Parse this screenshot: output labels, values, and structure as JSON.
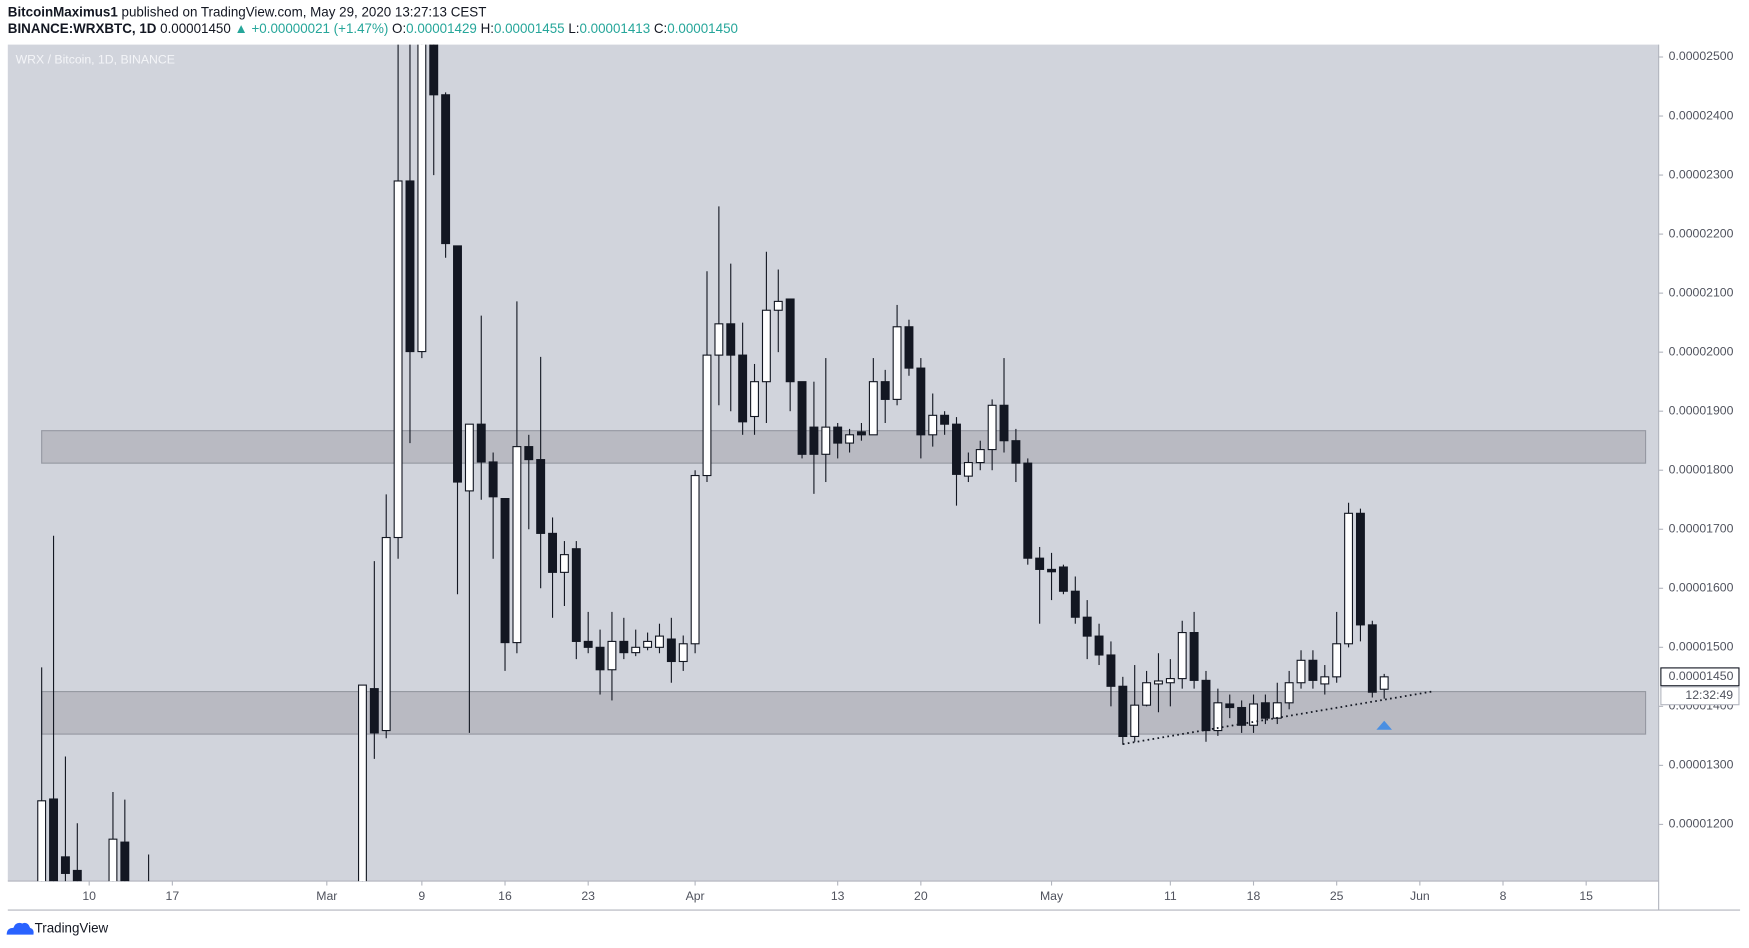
{
  "header": {
    "author": "BitcoinMaximus1",
    "published": "published on TradingView.com, May 29, 2020 13:27:13 CEST",
    "symbol": "BINANCE:WRXBTC, 1D",
    "last": "0.00001450",
    "change": "▲ +0.00000021 (+1.47%)",
    "o_label": "O:",
    "o": "0.00001429",
    "h_label": "H:",
    "h": "0.00001455",
    "l_label": "L:",
    "l": "0.00001413",
    "c_label": "C:",
    "c": "0.00001450"
  },
  "chart_data": {
    "type": "candlestick",
    "title": "WRX / Bitcoin, 1D, BINANCE",
    "x": [
      37,
      38,
      39,
      40,
      43,
      44,
      46,
      64,
      65,
      66,
      67,
      68,
      69,
      70,
      71,
      72,
      73,
      74,
      75,
      76,
      77,
      78,
      79,
      80,
      81,
      82,
      83,
      84,
      85,
      86,
      87,
      88,
      89,
      90,
      91,
      92,
      93,
      94,
      95,
      96,
      97,
      98,
      99,
      100,
      101,
      102,
      103,
      104,
      105,
      106,
      107,
      108,
      109,
      110,
      111,
      112,
      113,
      114,
      115,
      116,
      117,
      118,
      119,
      120,
      121,
      122,
      123,
      124,
      125,
      126,
      127,
      128,
      129,
      130,
      131,
      132,
      133,
      134,
      135,
      136,
      137,
      138,
      139,
      140,
      141,
      142,
      143,
      144,
      145,
      146,
      147,
      148,
      149,
      150
    ],
    "open": [
      1.09e-05,
      1.243e-05,
      1.145e-05,
      1.122e-05,
      1.1e-05,
      1.17e-05,
      1.1e-05,
      1.1e-05,
      1.43e-05,
      1.359e-05,
      1.686e-05,
      2.29e-05,
      2.001e-05,
      2.53e-05,
      2.436e-05,
      2.18e-05,
      1.765e-05,
      1.878e-05,
      1.814e-05,
      1.752e-05,
      1.508e-05,
      1.84e-05,
      1.818e-05,
      1.693e-05,
      1.627e-05,
      1.667e-05,
      1.51e-05,
      1.5e-05,
      1.462e-05,
      1.51e-05,
      1.491e-05,
      1.5e-05,
      1.5e-05,
      1.514e-05,
      1.476e-05,
      1.506e-05,
      1.791e-05,
      1.995e-05,
      2.048e-05,
      1.995e-05,
      1.891e-05,
      1.95e-05,
      2.071e-05,
      2.09e-05,
      1.95e-05,
      1.873e-05,
      1.827e-05,
      1.873e-05,
      1.846e-05,
      1.865e-05,
      1.86e-05,
      1.95e-05,
      1.92e-05,
      2.043e-05,
      1.973e-05,
      1.86e-05,
      1.893e-05,
      1.878e-05,
      1.79e-05,
      1.813e-05,
      1.835e-05,
      1.91e-05,
      1.85e-05,
      1.812e-05,
      1.651e-05,
      1.632e-05,
      1.636e-05,
      1.595e-05,
      1.551e-05,
      1.519e-05,
      1.487e-05,
      1.434e-05,
      1.349e-05,
      1.402e-05,
      1.438e-05,
      1.44e-05,
      1.447e-05,
      1.525e-05,
      1.444e-05,
      1.359e-05,
      1.404e-05,
      1.398e-05,
      1.368e-05,
      1.406e-05,
      1.38e-05,
      1.406e-05,
      1.44e-05,
      1.478e-05,
      1.438e-05,
      1.45e-05,
      1.506e-05,
      1.727e-05,
      1.538e-05,
      1.429e-05
    ],
    "high": [
      1.466e-05,
      1.689e-05,
      1.315e-05,
      1.202e-05,
      1.255e-05,
      1.242e-05,
      1.149e-05,
      1.436e-05,
      1.646e-05,
      1.759e-05,
      2.56e-05,
      2.56e-05,
      2.6e-05,
      2.6e-05,
      2.44e-05,
      2.18e-05,
      1.878e-05,
      2.062e-05,
      1.83e-05,
      1.752e-05,
      2.086e-05,
      1.86e-05,
      1.992e-05,
      1.72e-05,
      1.68e-05,
      1.68e-05,
      1.56e-05,
      1.53e-05,
      1.56e-05,
      1.55e-05,
      1.53e-05,
      1.525e-05,
      1.54e-05,
      1.55e-05,
      1.52e-05,
      1.8e-05,
      2.137e-05,
      2.247e-05,
      2.15e-05,
      2.05e-05,
      1.98e-05,
      2.17e-05,
      2.14e-05,
      2.09e-05,
      1.95e-05,
      1.95e-05,
      1.99e-05,
      1.88e-05,
      1.87e-05,
      1.88e-05,
      1.99e-05,
      1.97e-05,
      2.08e-05,
      2.055e-05,
      1.99e-05,
      1.93e-05,
      1.9e-05,
      1.89e-05,
      1.83e-05,
      1.85e-05,
      1.92e-05,
      1.99e-05,
      1.87e-05,
      1.82e-05,
      1.67e-05,
      1.66e-05,
      1.64e-05,
      1.62e-05,
      1.58e-05,
      1.54e-05,
      1.51e-05,
      1.45e-05,
      1.47e-05,
      1.46e-05,
      1.49e-05,
      1.48e-05,
      1.545e-05,
      1.56e-05,
      1.46e-05,
      1.43e-05,
      1.42e-05,
      1.41e-05,
      1.42e-05,
      1.42e-05,
      1.44e-05,
      1.46e-05,
      1.495e-05,
      1.495e-05,
      1.47e-05,
      1.56e-05,
      1.745e-05,
      1.735e-05,
      1.545e-05,
      1.455e-05
    ],
    "low": [
      1.08e-05,
      1.08e-05,
      1.08e-05,
      1.08e-05,
      1.08e-05,
      1.08e-05,
      1.08e-05,
      1.05e-05,
      1.311e-05,
      1.346e-05,
      1.65e-05,
      1.846e-05,
      1.99e-05,
      2.3e-05,
      2.16e-05,
      1.59e-05,
      1.355e-05,
      1.75e-05,
      1.65e-05,
      1.46e-05,
      1.49e-05,
      1.7e-05,
      1.6e-05,
      1.55e-05,
      1.57e-05,
      1.48e-05,
      1.49e-05,
      1.42e-05,
      1.41e-05,
      1.48e-05,
      1.485e-05,
      1.495e-05,
      1.49e-05,
      1.44e-05,
      1.46e-05,
      1.49e-05,
      1.78e-05,
      1.91e-05,
      1.9e-05,
      1.86e-05,
      1.86e-05,
      1.88e-05,
      2e-05,
      1.9e-05,
      1.82e-05,
      1.76e-05,
      1.78e-05,
      1.82e-05,
      1.83e-05,
      1.85e-05,
      1.86e-05,
      1.88e-05,
      1.91e-05,
      1.96e-05,
      1.82e-05,
      1.84e-05,
      1.86e-05,
      1.74e-05,
      1.78e-05,
      1.8e-05,
      1.8e-05,
      1.83e-05,
      1.78e-05,
      1.64e-05,
      1.54e-05,
      1.58e-05,
      1.59e-05,
      1.54e-05,
      1.48e-05,
      1.47e-05,
      1.4e-05,
      1.335e-05,
      1.34e-05,
      1.4e-05,
      1.39e-05,
      1.4e-05,
      1.43e-05,
      1.43e-05,
      1.34e-05,
      1.35e-05,
      1.38e-05,
      1.355e-05,
      1.355e-05,
      1.37e-05,
      1.37e-05,
      1.395e-05,
      1.43e-05,
      1.43e-05,
      1.42e-05,
      1.44e-05,
      1.5e-05,
      1.51e-05,
      1.415e-05,
      1.413e-05
    ],
    "close": [
      1.24e-05,
      1.1e-05,
      1.117e-05,
      1.1e-05,
      1.175e-05,
      1.1e-05,
      1.09e-05,
      1.436e-05,
      1.355e-05,
      1.686e-05,
      2.29e-05,
      2.001e-05,
      2.53e-05,
      2.436e-05,
      2.184e-05,
      1.78e-05,
      1.878e-05,
      1.814e-05,
      1.755e-05,
      1.508e-05,
      1.84e-05,
      1.818e-05,
      1.693e-05,
      1.627e-05,
      1.657e-05,
      1.51e-05,
      1.5e-05,
      1.462e-05,
      1.51e-05,
      1.491e-05,
      1.5e-05,
      1.51e-05,
      1.519e-05,
      1.476e-05,
      1.506e-05,
      1.791e-05,
      1.995e-05,
      2.048e-05,
      1.995e-05,
      1.882e-05,
      1.95e-05,
      2.071e-05,
      2.086e-05,
      1.95e-05,
      1.827e-05,
      1.827e-05,
      1.873e-05,
      1.846e-05,
      1.86e-05,
      1.86e-05,
      1.95e-05,
      1.92e-05,
      2.043e-05,
      1.973e-05,
      1.86e-05,
      1.893e-05,
      1.878e-05,
      1.793e-05,
      1.813e-05,
      1.835e-05,
      1.91e-05,
      1.85e-05,
      1.812e-05,
      1.651e-05,
      1.632e-05,
      1.628e-05,
      1.595e-05,
      1.551e-05,
      1.519e-05,
      1.487e-05,
      1.434e-05,
      1.349e-05,
      1.402e-05,
      1.44e-05,
      1.443e-05,
      1.447e-05,
      1.525e-05,
      1.444e-05,
      1.359e-05,
      1.406e-05,
      1.398e-05,
      1.368e-05,
      1.404e-05,
      1.38e-05,
      1.406e-05,
      1.44e-05,
      1.478e-05,
      1.444e-05,
      1.45e-05,
      1.506e-05,
      1.727e-05,
      1.538e-05,
      1.424e-05,
      1.45e-05
    ],
    "up_color": "#ffffff",
    "down_color": "#131722",
    "xlim": [
      34.15,
      173.1
    ],
    "xticks": [
      {
        "value": 41,
        "label": "10"
      },
      {
        "value": 48,
        "label": "17"
      },
      {
        "value": 61,
        "label": "Mar"
      },
      {
        "value": 69,
        "label": "9"
      },
      {
        "value": 76,
        "label": "16"
      },
      {
        "value": 83,
        "label": "23"
      },
      {
        "value": 92,
        "label": "Apr"
      },
      {
        "value": 104,
        "label": "13"
      },
      {
        "value": 111,
        "label": "20"
      },
      {
        "value": 122,
        "label": "May"
      },
      {
        "value": 132,
        "label": "11"
      },
      {
        "value": 139,
        "label": "18"
      },
      {
        "value": 146,
        "label": "25"
      },
      {
        "value": 153,
        "label": "Jun"
      },
      {
        "value": 160,
        "label": "8"
      },
      {
        "value": 167,
        "label": "15"
      }
    ],
    "ylim": [
      1.104e-05,
      2.521e-05
    ],
    "yticks": [
      {
        "value": 1.2e-05,
        "label": "0.00001200"
      },
      {
        "value": 1.3e-05,
        "label": "0.00001300"
      },
      {
        "value": 1.4e-05,
        "label": "0.00001400"
      },
      {
        "value": 1.5e-05,
        "label": "0.00001500"
      },
      {
        "value": 1.6e-05,
        "label": "0.00001600"
      },
      {
        "value": 1.7e-05,
        "label": "0.00001700"
      },
      {
        "value": 1.8e-05,
        "label": "0.00001800"
      },
      {
        "value": 1.9e-05,
        "label": "0.00001900"
      },
      {
        "value": 2e-05,
        "label": "0.00002000"
      },
      {
        "value": 2.1e-05,
        "label": "0.00002100"
      },
      {
        "value": 2.2e-05,
        "label": "0.00002200"
      },
      {
        "value": 2.3e-05,
        "label": "0.00002300"
      },
      {
        "value": 2.4e-05,
        "label": "0.00002400"
      },
      {
        "value": 2.5e-05,
        "label": "0.00002500"
      }
    ],
    "zone_color": "#b9bac2",
    "zones": [
      {
        "x": [
          37,
          172
        ],
        "from": 1.812e-05,
        "to": 1.867e-05
      },
      {
        "x": [
          37,
          172
        ],
        "from": 1.353e-05,
        "to": 1.425e-05
      }
    ],
    "trendline": {
      "x": [
        128,
        154
      ],
      "y": [
        1.336e-05,
        1.425e-05
      ]
    },
    "marker": {
      "x": 150,
      "y": 1.368e-05,
      "color": "#4a8fe2"
    },
    "last_price": {
      "value": 1.45e-05,
      "label": "0.00001450"
    },
    "countdown": "12:32:49"
  },
  "footer": {
    "brand": "TradingView"
  }
}
